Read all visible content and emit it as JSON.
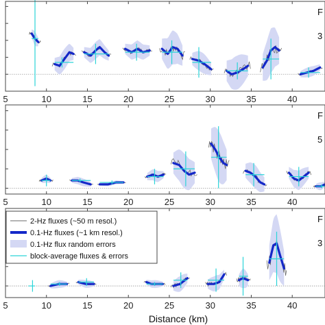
{
  "colors": {
    "raw": "#6a6a6a",
    "smooth": "#1428c8",
    "band": "#d4d8f4",
    "block": "#2ad4d8",
    "frame": "#444444",
    "zero": "#999999"
  },
  "xlim": [
    5,
    44
  ],
  "xticks": [
    5,
    10,
    15,
    20,
    25,
    30,
    35,
    40
  ],
  "xlabel": "Distance (km)",
  "legend": {
    "placement": "upper-left of bottom panel",
    "entries": [
      {
        "key": "raw",
        "label": "2-Hz fluxes (~50 m resol.)"
      },
      {
        "key": "smooth",
        "label": "0.1-Hz fluxes (~1 km resol.)"
      },
      {
        "key": "band",
        "label": "0.1-Hz flux random errors"
      },
      {
        "key": "block",
        "label": "block-average fluxes & errors"
      }
    ]
  },
  "chart_data": [
    {
      "type": "line",
      "panel": 1,
      "corner_text": [
        "F",
        "3"
      ],
      "ylim": [
        -1,
        4.3
      ],
      "grid": false,
      "segments": [
        {
          "x0": 8.2,
          "x1": 9.0,
          "smooth": [
            [
              8.2,
              2.4
            ],
            [
              8.6,
              2.1
            ],
            [
              9.0,
              1.9
            ]
          ],
          "err": 0.4,
          "block_x": 8.6,
          "block_y": 2.1,
          "block_err": 2.8
        },
        {
          "x0": 11.0,
          "x1": 13.3,
          "smooth": [
            [
              11.0,
              0.6
            ],
            [
              11.6,
              0.5
            ],
            [
              12.2,
              0.9
            ],
            [
              12.8,
              1.3
            ],
            [
              13.3,
              1.2
            ]
          ],
          "err": 0.6,
          "block_x": 11.9,
          "block_y": 0.7,
          "block_err": 0.3
        },
        {
          "x0": 14.6,
          "x1": 17.6,
          "smooth": [
            [
              14.6,
              1.3
            ],
            [
              15.4,
              1.1
            ],
            [
              16.0,
              1.4
            ],
            [
              16.5,
              1.6
            ],
            [
              17.1,
              1.3
            ],
            [
              17.6,
              1.1
            ]
          ],
          "err": 0.5,
          "block_x": 16.0,
          "block_y": 1.2,
          "block_err": 0.6
        },
        {
          "x0": 19.6,
          "x1": 22.6,
          "smooth": [
            [
              19.6,
              1.5
            ],
            [
              20.4,
              1.3
            ],
            [
              21.1,
              1.5
            ],
            [
              21.8,
              1.3
            ],
            [
              22.6,
              1.4
            ]
          ],
          "err": 0.5,
          "block_x": 21.0,
          "block_y": 1.3,
          "block_err": 0.5
        },
        {
          "x0": 24.1,
          "x1": 26.6,
          "smooth": [
            [
              24.1,
              1.5
            ],
            [
              24.8,
              1.2
            ],
            [
              25.4,
              1.6
            ],
            [
              26.0,
              1.5
            ],
            [
              26.6,
              1.1
            ]
          ],
          "err": 1.0,
          "block_x": 25.3,
          "block_y": 1.3,
          "block_err": 0.7
        },
        {
          "x0": 27.8,
          "x1": 30.1,
          "smooth": [
            [
              27.8,
              0.9
            ],
            [
              28.6,
              0.8
            ],
            [
              29.3,
              0.6
            ],
            [
              30.1,
              0.3
            ]
          ],
          "err": 0.6,
          "block_x": 28.6,
          "block_y": 0.7,
          "block_err": 0.9
        },
        {
          "x0": 32.0,
          "x1": 34.6,
          "smooth": [
            [
              32.0,
              0.2
            ],
            [
              32.6,
              0.0
            ],
            [
              33.3,
              0.1
            ],
            [
              34.0,
              0.3
            ],
            [
              34.6,
              0.5
            ]
          ],
          "err": 1.0,
          "block_x": 33.3,
          "block_y": 0.2,
          "block_err": 0.5
        },
        {
          "x0": 36.4,
          "x1": 38.4,
          "smooth": [
            [
              36.4,
              0.4
            ],
            [
              36.9,
              0.8
            ],
            [
              37.4,
              1.4
            ],
            [
              37.9,
              1.6
            ],
            [
              38.4,
              1.4
            ]
          ],
          "err": 1.3,
          "block_x": 37.4,
          "block_y": 0.9,
          "block_err": 1.2
        },
        {
          "x0": 41.0,
          "x1": 43.4,
          "smooth": [
            [
              41.0,
              0.0
            ],
            [
              41.8,
              0.1
            ],
            [
              42.6,
              0.2
            ],
            [
              43.4,
              0.4
            ]
          ],
          "err": 0.3,
          "block_x": 42.0,
          "block_y": 0.1,
          "block_err": 0.3
        }
      ]
    },
    {
      "type": "line",
      "panel": 2,
      "corner_text": [
        "F",
        "5"
      ],
      "ylim": [
        -0.3,
        4.3
      ],
      "grid": false,
      "segments": [
        {
          "x0": 9.4,
          "x1": 10.5,
          "smooth": [
            [
              9.4,
              0.4
            ],
            [
              10.0,
              0.5
            ],
            [
              10.5,
              0.4
            ]
          ],
          "err": 0.2,
          "block_x": 10.0,
          "block_y": 0.4,
          "block_err": 0.3
        },
        {
          "x0": 13.1,
          "x1": 15.4,
          "smooth": [
            [
              13.1,
              0.4
            ],
            [
              13.8,
              0.4
            ],
            [
              14.5,
              0.3
            ],
            [
              15.4,
              0.2
            ]
          ],
          "err": 0.2,
          "block_x": 14.1,
          "block_y": 0.4,
          "block_err": 0.1
        },
        {
          "x0": 16.5,
          "x1": 19.4,
          "smooth": [
            [
              16.5,
              0.2
            ],
            [
              17.5,
              0.2
            ],
            [
              18.5,
              0.3
            ],
            [
              19.4,
              0.3
            ]
          ],
          "err": 0.1,
          "block_x": 18.0,
          "block_y": 0.3,
          "block_err": 0.1
        },
        {
          "x0": 22.3,
          "x1": 24.3,
          "smooth": [
            [
              22.3,
              0.6
            ],
            [
              23.0,
              0.7
            ],
            [
              23.6,
              0.6
            ],
            [
              24.3,
              0.7
            ]
          ],
          "err": 0.3,
          "block_x": 23.2,
          "block_y": 0.6,
          "block_err": 0.4
        },
        {
          "x0": 25.5,
          "x1": 28.1,
          "smooth": [
            [
              25.5,
              1.3
            ],
            [
              26.2,
              1.2
            ],
            [
              26.8,
              0.9
            ],
            [
              27.4,
              0.7
            ],
            [
              28.1,
              0.8
            ]
          ],
          "err": 0.9,
          "block_x": 27.0,
          "block_y": 1.0,
          "block_err": 0.9
        },
        {
          "x0": 30.1,
          "x1": 32.0,
          "smooth": [
            [
              30.1,
              2.3
            ],
            [
              30.6,
              2.0
            ],
            [
              31.1,
              1.6
            ],
            [
              31.6,
              1.3
            ],
            [
              32.0,
              1.2
            ]
          ],
          "err": 1.3,
          "block_x": 31.0,
          "block_y": 1.6,
          "block_err": 1.6
        },
        {
          "x0": 34.3,
          "x1": 36.6,
          "smooth": [
            [
              34.3,
              0.9
            ],
            [
              34.9,
              0.8
            ],
            [
              35.5,
              0.6
            ],
            [
              36.1,
              0.3
            ],
            [
              36.6,
              0.2
            ]
          ],
          "err": 0.6,
          "block_x": 35.3,
          "block_y": 0.7,
          "block_err": 0.6
        },
        {
          "x0": 39.6,
          "x1": 42.0,
          "smooth": [
            [
              39.6,
              0.8
            ],
            [
              40.2,
              0.5
            ],
            [
              40.8,
              0.4
            ],
            [
              41.4,
              0.6
            ],
            [
              42.0,
              0.8
            ]
          ],
          "err": 0.5,
          "block_x": 40.8,
          "block_y": 0.6,
          "block_err": 0.5
        },
        {
          "x0": 42.9,
          "x1": 44.0,
          "smooth": [
            [
              42.9,
              0.1
            ],
            [
              43.5,
              0.1
            ],
            [
              44.0,
              0.2
            ]
          ],
          "err": 0.2,
          "block_x": 43.6,
          "block_y": 0.1,
          "block_err": 0.1
        }
      ]
    },
    {
      "type": "line",
      "panel": 3,
      "corner_text": [
        "F",
        "3"
      ],
      "ylim": [
        -0.6,
        4.0
      ],
      "grid": false,
      "segments": [
        {
          "x0": 7.8,
          "x1": 8.6,
          "smooth": [],
          "err": 0.0,
          "block_x": 8.3,
          "block_y": 0.0,
          "block_err": 0.3
        },
        {
          "x0": 10.5,
          "x1": 12.5,
          "smooth": [
            [
              10.5,
              0.0
            ],
            [
              11.5,
              0.1
            ],
            [
              12.5,
              0.1
            ]
          ],
          "err": 0.2,
          "block_x": 11.6,
          "block_y": 0.1,
          "block_err": 0.1
        },
        {
          "x0": 13.9,
          "x1": 15.8,
          "smooth": [
            [
              13.9,
              0.2
            ],
            [
              14.8,
              0.1
            ],
            [
              15.8,
              0.1
            ]
          ],
          "err": 0.2,
          "block_x": 14.9,
          "block_y": 0.2,
          "block_err": 0.2
        },
        {
          "x0": 22.2,
          "x1": 24.2,
          "smooth": [
            [
              22.2,
              0.2
            ],
            [
              22.8,
              0.1
            ],
            [
              23.5,
              0.1
            ],
            [
              24.2,
              0.1
            ]
          ],
          "err": 0.2,
          "block_x": 23.2,
          "block_y": 0.1,
          "block_err": 0.1
        },
        {
          "x0": 25.5,
          "x1": 27.2,
          "smooth": [
            [
              25.5,
              0.0
            ],
            [
              26.3,
              0.1
            ],
            [
              27.2,
              0.4
            ]
          ],
          "err": 0.4,
          "block_x": 26.4,
          "block_y": 0.3,
          "block_err": 0.4
        },
        {
          "x0": 29.7,
          "x1": 31.7,
          "smooth": [
            [
              29.7,
              0.1
            ],
            [
              30.4,
              0.1
            ],
            [
              31.1,
              0.2
            ],
            [
              31.7,
              0.6
            ]
          ],
          "err": 0.4,
          "block_x": 30.7,
          "block_y": 0.3,
          "block_err": 0.6
        },
        {
          "x0": 33.5,
          "x1": 34.6,
          "smooth": [
            [
              33.5,
              0.3
            ],
            [
              34.0,
              0.4
            ],
            [
              34.6,
              0.3
            ]
          ],
          "err": 0.5,
          "block_x": 34.0,
          "block_y": 0.5,
          "block_err": 1.0
        },
        {
          "x0": 37.2,
          "x1": 39.0,
          "smooth": [
            [
              37.2,
              1.2
            ],
            [
              37.7,
              2.1
            ],
            [
              38.1,
              2.2
            ],
            [
              38.5,
              1.6
            ],
            [
              39.0,
              0.9
            ]
          ],
          "err": 1.5,
          "block_x": 38.1,
          "block_y": 1.4,
          "block_err": 1.4
        }
      ]
    }
  ]
}
